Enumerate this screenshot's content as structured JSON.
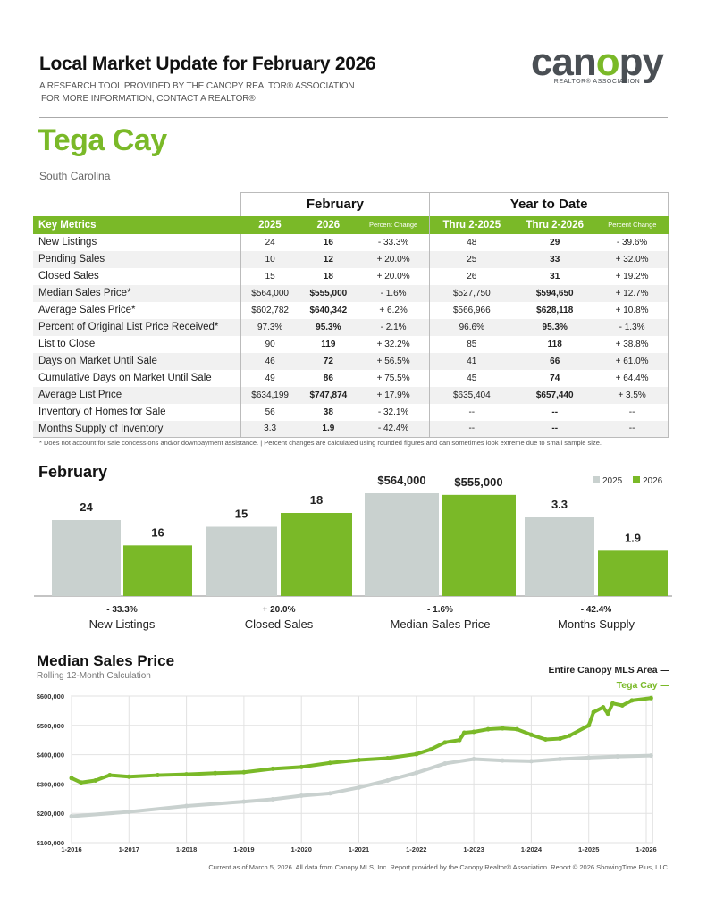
{
  "header": {
    "title": "Local Market Update for February 2026",
    "line1": "A RESEARCH TOOL PROVIDED BY THE CANOPY REALTOR® ASSOCIATION",
    "line2": "FOR MORE INFORMATION, CONTACT A REALTOR®",
    "logo_word": "canopy",
    "logo_sub": "REALTOR® ASSOCIATION"
  },
  "area": {
    "name": "Tega Cay",
    "state": "South Carolina"
  },
  "table": {
    "group1": "February",
    "group2": "Year to Date",
    "columns": [
      "Key Metrics",
      "2025",
      "2026",
      "Percent Change",
      "Thru 2-2025",
      "Thru 2-2026",
      "Percent Change"
    ],
    "rows": [
      [
        "New Listings",
        "24",
        "16",
        "- 33.3%",
        "48",
        "29",
        "- 39.6%"
      ],
      [
        "Pending Sales",
        "10",
        "12",
        "+ 20.0%",
        "25",
        "33",
        "+ 32.0%"
      ],
      [
        "Closed Sales",
        "15",
        "18",
        "+ 20.0%",
        "26",
        "31",
        "+ 19.2%"
      ],
      [
        "Median Sales Price*",
        "$564,000",
        "$555,000",
        "- 1.6%",
        "$527,750",
        "$594,650",
        "+ 12.7%"
      ],
      [
        "Average Sales Price*",
        "$602,782",
        "$640,342",
        "+ 6.2%",
        "$566,966",
        "$628,118",
        "+ 10.8%"
      ],
      [
        "Percent of Original List Price Received*",
        "97.3%",
        "95.3%",
        "- 2.1%",
        "96.6%",
        "95.3%",
        "- 1.3%"
      ],
      [
        "List to Close",
        "90",
        "119",
        "+ 32.2%",
        "85",
        "118",
        "+ 38.8%"
      ],
      [
        "Days on Market Until Sale",
        "46",
        "72",
        "+ 56.5%",
        "41",
        "66",
        "+ 61.0%"
      ],
      [
        "Cumulative Days on Market Until Sale",
        "49",
        "86",
        "+ 75.5%",
        "45",
        "74",
        "+ 64.4%"
      ],
      [
        "Average List Price",
        "$634,199",
        "$747,874",
        "+ 17.9%",
        "$635,404",
        "$657,440",
        "+ 3.5%"
      ],
      [
        "Inventory of Homes for Sale",
        "56",
        "38",
        "- 32.1%",
        "--",
        "--",
        "--"
      ],
      [
        "Months Supply of Inventory",
        "3.3",
        "1.9",
        "- 42.4%",
        "--",
        "--",
        "--"
      ]
    ],
    "footnote": "* Does not account for sale concessions and/or downpayment assistance.  |  Percent changes are calculated using rounded figures and can sometimes look extreme due to small sample size."
  },
  "colors": {
    "green": "#7ab928",
    "gray": "#c9d1cf"
  },
  "chart_data": [
    {
      "type": "bar",
      "title": "February",
      "legend": [
        "2025",
        "2026"
      ],
      "categories": [
        "New Listings",
        "Closed Sales",
        "Median Sales Price",
        "Months Supply"
      ],
      "labels_2025": [
        "24",
        "15",
        "$564,000",
        "3.3"
      ],
      "labels_2026": [
        "16",
        "18",
        "$555,000",
        "1.9"
      ],
      "series": [
        {
          "name": "2025",
          "values": [
            24,
            15,
            564000,
            3.3
          ]
        },
        {
          "name": "2026",
          "values": [
            16,
            18,
            555000,
            1.9
          ]
        }
      ],
      "changes": [
        "- 33.3%",
        "+ 20.0%",
        "- 1.6%",
        "- 42.4%"
      ]
    },
    {
      "type": "line",
      "title": "Median Sales Price",
      "subtitle": "Rolling 12-Month Calculation",
      "yticks": [
        "$600,000",
        "$500,000",
        "$400,000",
        "$300,000",
        "$200,000",
        "$100,000"
      ],
      "ylim": [
        100000,
        600000
      ],
      "xticks": [
        "1-2016",
        "1-2017",
        "1-2018",
        "1-2019",
        "1-2020",
        "1-2021",
        "1-2022",
        "1-2023",
        "1-2024",
        "1-2025",
        "1-2026"
      ],
      "series": [
        {
          "name": "Entire Canopy MLS Area",
          "points": [
            [
              "2016-01",
              190000
            ],
            [
              "2017-01",
              205000
            ],
            [
              "2018-01",
              225000
            ],
            [
              "2019-01",
              240000
            ],
            [
              "2019-07",
              248000
            ],
            [
              "2020-01",
              260000
            ],
            [
              "2020-07",
              268000
            ],
            [
              "2021-01",
              288000
            ],
            [
              "2021-07",
              312000
            ],
            [
              "2022-01",
              338000
            ],
            [
              "2022-07",
              370000
            ],
            [
              "2023-01",
              385000
            ],
            [
              "2023-07",
              380000
            ],
            [
              "2024-01",
              378000
            ],
            [
              "2024-07",
              385000
            ],
            [
              "2025-01",
              390000
            ],
            [
              "2025-07",
              394000
            ],
            [
              "2026-02",
              397000
            ]
          ]
        },
        {
          "name": "Tega Cay",
          "points": [
            [
              "2016-01",
              320000
            ],
            [
              "2016-03",
              305000
            ],
            [
              "2016-06",
              312000
            ],
            [
              "2016-09",
              330000
            ],
            [
              "2017-01",
              325000
            ],
            [
              "2017-07",
              330000
            ],
            [
              "2018-01",
              333000
            ],
            [
              "2018-07",
              337000
            ],
            [
              "2019-01",
              340000
            ],
            [
              "2019-07",
              352000
            ],
            [
              "2020-01",
              358000
            ],
            [
              "2020-07",
              372000
            ],
            [
              "2021-01",
              382000
            ],
            [
              "2021-07",
              388000
            ],
            [
              "2022-01",
              402000
            ],
            [
              "2022-04",
              418000
            ],
            [
              "2022-07",
              442000
            ],
            [
              "2022-10",
              450000
            ],
            [
              "2022-11",
              475000
            ],
            [
              "2023-01",
              478000
            ],
            [
              "2023-04",
              487000
            ],
            [
              "2023-07",
              490000
            ],
            [
              "2023-10",
              487000
            ],
            [
              "2024-01",
              468000
            ],
            [
              "2024-04",
              452000
            ],
            [
              "2024-07",
              455000
            ],
            [
              "2024-09",
              465000
            ],
            [
              "2025-01",
              500000
            ],
            [
              "2025-02",
              545000
            ],
            [
              "2025-04",
              562000
            ],
            [
              "2025-05",
              540000
            ],
            [
              "2025-06",
              575000
            ],
            [
              "2025-08",
              568000
            ],
            [
              "2025-10",
              585000
            ],
            [
              "2026-02",
              593000
            ]
          ]
        }
      ]
    }
  ],
  "bottom": "Current as of March 5, 2026. All data from Canopy MLS, Inc. Report provided by the Canopy Realtor® Association. Report © 2026 ShowingTime Plus, LLC."
}
